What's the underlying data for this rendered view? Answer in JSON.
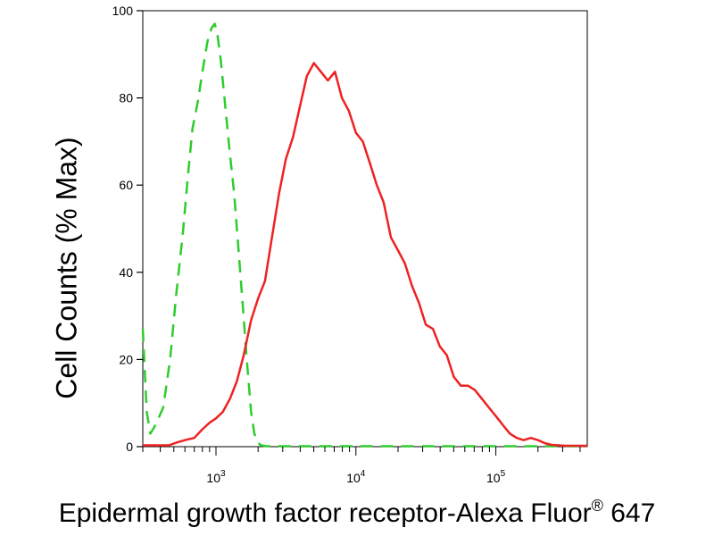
{
  "chart_data": {
    "type": "line",
    "title": "",
    "ylabel": "Cell Counts (% Max)",
    "xlabel": {
      "main": "Epidermal growth factor receptor-Alexa Fluor",
      "superscript": "®",
      "suffix": "647"
    },
    "xscale": "log",
    "xlim": [
      300,
      450000
    ],
    "ylim": [
      0,
      100
    ],
    "grid": false,
    "legend": "none",
    "y_ticks": [
      0,
      20,
      40,
      60,
      80,
      100
    ],
    "y_tick_labels": [
      "0",
      "20",
      "40",
      "60",
      "80",
      "100"
    ],
    "x_major_ticks": [
      {
        "value": 1000,
        "base": "10",
        "exp": "3"
      },
      {
        "value": 10000,
        "base": "10",
        "exp": "4"
      },
      {
        "value": 100000,
        "base": "10",
        "exp": "5"
      }
    ],
    "series": [
      {
        "color": "#2ecc2e",
        "dash": "dashed",
        "points": [
          [
            300,
            27
          ],
          [
            320,
            8
          ],
          [
            340,
            3
          ],
          [
            370,
            5
          ],
          [
            420,
            9
          ],
          [
            470,
            20
          ],
          [
            520,
            35
          ],
          [
            580,
            49
          ],
          [
            630,
            62
          ],
          [
            680,
            73
          ],
          [
            740,
            79
          ],
          [
            810,
            87
          ],
          [
            870,
            93
          ],
          [
            930,
            96
          ],
          [
            980,
            97
          ],
          [
            1020,
            95
          ],
          [
            1080,
            89
          ],
          [
            1150,
            80
          ],
          [
            1250,
            68
          ],
          [
            1350,
            58
          ],
          [
            1450,
            45
          ],
          [
            1550,
            33
          ],
          [
            1660,
            20
          ],
          [
            1780,
            8
          ],
          [
            1880,
            3
          ],
          [
            1980,
            1
          ],
          [
            2100,
            0.3
          ],
          [
            2300,
            0.1
          ],
          [
            10000,
            0.1
          ],
          [
            100000,
            0.1
          ],
          [
            450000,
            0.1
          ]
        ]
      },
      {
        "color": "#ee2222",
        "dash": "solid",
        "points": [
          [
            300,
            0.3
          ],
          [
            460,
            0.3
          ],
          [
            530,
            1
          ],
          [
            600,
            1.5
          ],
          [
            700,
            2
          ],
          [
            800,
            4
          ],
          [
            900,
            5.5
          ],
          [
            1000,
            6.5
          ],
          [
            1120,
            8
          ],
          [
            1260,
            11
          ],
          [
            1410,
            15
          ],
          [
            1580,
            21
          ],
          [
            1780,
            29
          ],
          [
            2000,
            34
          ],
          [
            2240,
            38
          ],
          [
            2510,
            48
          ],
          [
            2820,
            58
          ],
          [
            3160,
            66
          ],
          [
            3550,
            71
          ],
          [
            3980,
            78
          ],
          [
            4460,
            85
          ],
          [
            5010,
            88
          ],
          [
            5620,
            86
          ],
          [
            6310,
            84
          ],
          [
            7080,
            86
          ],
          [
            7940,
            80
          ],
          [
            8910,
            77
          ],
          [
            10000,
            72
          ],
          [
            11200,
            70
          ],
          [
            12600,
            65
          ],
          [
            14100,
            60
          ],
          [
            15800,
            56
          ],
          [
            17800,
            48
          ],
          [
            20000,
            45
          ],
          [
            22400,
            42
          ],
          [
            25100,
            37
          ],
          [
            28200,
            33
          ],
          [
            31600,
            28
          ],
          [
            35500,
            27
          ],
          [
            39800,
            23
          ],
          [
            44600,
            21
          ],
          [
            50100,
            16
          ],
          [
            56200,
            14
          ],
          [
            63100,
            14
          ],
          [
            70800,
            13
          ],
          [
            79400,
            11
          ],
          [
            89100,
            9
          ],
          [
            100000,
            7
          ],
          [
            112000,
            5
          ],
          [
            126000,
            3
          ],
          [
            141000,
            2
          ],
          [
            158000,
            1.5
          ],
          [
            178000,
            2
          ],
          [
            200000,
            1.5
          ],
          [
            224000,
            0.8
          ],
          [
            251000,
            0.4
          ],
          [
            316000,
            0.2
          ],
          [
            450000,
            0.2
          ]
        ]
      }
    ]
  }
}
